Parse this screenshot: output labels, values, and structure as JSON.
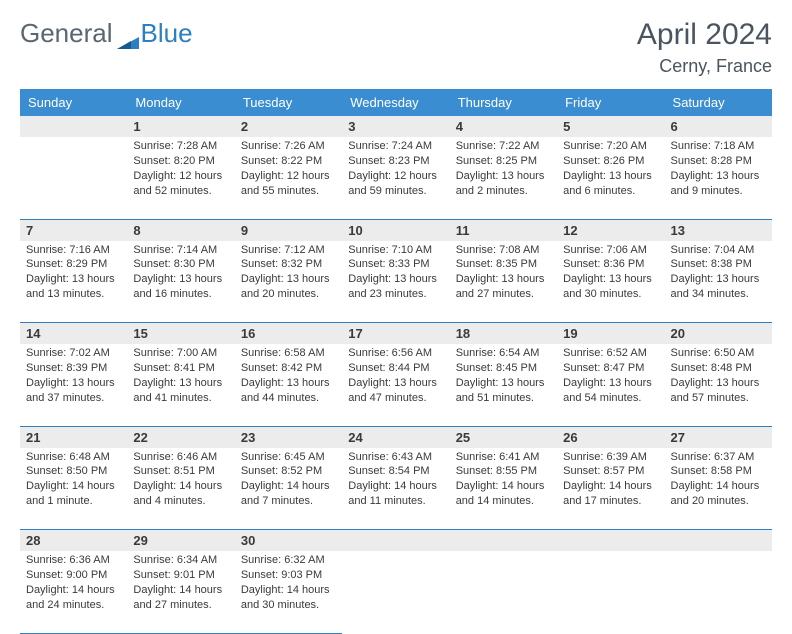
{
  "logo": {
    "text1": "General",
    "text2": "Blue"
  },
  "title": "April 2024",
  "location": "Cerny, France",
  "colors": {
    "header_bg": "#3a8dd0",
    "border": "#2d7fc1",
    "daynum_bg": "#ececec",
    "text": "#3a3a3a",
    "title_text": "#4a5560"
  },
  "day_headers": [
    "Sunday",
    "Monday",
    "Tuesday",
    "Wednesday",
    "Thursday",
    "Friday",
    "Saturday"
  ],
  "weeks": [
    {
      "nums": [
        "",
        "1",
        "2",
        "3",
        "4",
        "5",
        "6"
      ],
      "cells": [
        null,
        {
          "sunrise": "Sunrise: 7:28 AM",
          "sunset": "Sunset: 8:20 PM",
          "daylight": "Daylight: 12 hours and 52 minutes."
        },
        {
          "sunrise": "Sunrise: 7:26 AM",
          "sunset": "Sunset: 8:22 PM",
          "daylight": "Daylight: 12 hours and 55 minutes."
        },
        {
          "sunrise": "Sunrise: 7:24 AM",
          "sunset": "Sunset: 8:23 PM",
          "daylight": "Daylight: 12 hours and 59 minutes."
        },
        {
          "sunrise": "Sunrise: 7:22 AM",
          "sunset": "Sunset: 8:25 PM",
          "daylight": "Daylight: 13 hours and 2 minutes."
        },
        {
          "sunrise": "Sunrise: 7:20 AM",
          "sunset": "Sunset: 8:26 PM",
          "daylight": "Daylight: 13 hours and 6 minutes."
        },
        {
          "sunrise": "Sunrise: 7:18 AM",
          "sunset": "Sunset: 8:28 PM",
          "daylight": "Daylight: 13 hours and 9 minutes."
        }
      ]
    },
    {
      "nums": [
        "7",
        "8",
        "9",
        "10",
        "11",
        "12",
        "13"
      ],
      "cells": [
        {
          "sunrise": "Sunrise: 7:16 AM",
          "sunset": "Sunset: 8:29 PM",
          "daylight": "Daylight: 13 hours and 13 minutes."
        },
        {
          "sunrise": "Sunrise: 7:14 AM",
          "sunset": "Sunset: 8:30 PM",
          "daylight": "Daylight: 13 hours and 16 minutes."
        },
        {
          "sunrise": "Sunrise: 7:12 AM",
          "sunset": "Sunset: 8:32 PM",
          "daylight": "Daylight: 13 hours and 20 minutes."
        },
        {
          "sunrise": "Sunrise: 7:10 AM",
          "sunset": "Sunset: 8:33 PM",
          "daylight": "Daylight: 13 hours and 23 minutes."
        },
        {
          "sunrise": "Sunrise: 7:08 AM",
          "sunset": "Sunset: 8:35 PM",
          "daylight": "Daylight: 13 hours and 27 minutes."
        },
        {
          "sunrise": "Sunrise: 7:06 AM",
          "sunset": "Sunset: 8:36 PM",
          "daylight": "Daylight: 13 hours and 30 minutes."
        },
        {
          "sunrise": "Sunrise: 7:04 AM",
          "sunset": "Sunset: 8:38 PM",
          "daylight": "Daylight: 13 hours and 34 minutes."
        }
      ]
    },
    {
      "nums": [
        "14",
        "15",
        "16",
        "17",
        "18",
        "19",
        "20"
      ],
      "cells": [
        {
          "sunrise": "Sunrise: 7:02 AM",
          "sunset": "Sunset: 8:39 PM",
          "daylight": "Daylight: 13 hours and 37 minutes."
        },
        {
          "sunrise": "Sunrise: 7:00 AM",
          "sunset": "Sunset: 8:41 PM",
          "daylight": "Daylight: 13 hours and 41 minutes."
        },
        {
          "sunrise": "Sunrise: 6:58 AM",
          "sunset": "Sunset: 8:42 PM",
          "daylight": "Daylight: 13 hours and 44 minutes."
        },
        {
          "sunrise": "Sunrise: 6:56 AM",
          "sunset": "Sunset: 8:44 PM",
          "daylight": "Daylight: 13 hours and 47 minutes."
        },
        {
          "sunrise": "Sunrise: 6:54 AM",
          "sunset": "Sunset: 8:45 PM",
          "daylight": "Daylight: 13 hours and 51 minutes."
        },
        {
          "sunrise": "Sunrise: 6:52 AM",
          "sunset": "Sunset: 8:47 PM",
          "daylight": "Daylight: 13 hours and 54 minutes."
        },
        {
          "sunrise": "Sunrise: 6:50 AM",
          "sunset": "Sunset: 8:48 PM",
          "daylight": "Daylight: 13 hours and 57 minutes."
        }
      ]
    },
    {
      "nums": [
        "21",
        "22",
        "23",
        "24",
        "25",
        "26",
        "27"
      ],
      "cells": [
        {
          "sunrise": "Sunrise: 6:48 AM",
          "sunset": "Sunset: 8:50 PM",
          "daylight": "Daylight: 14 hours and 1 minute."
        },
        {
          "sunrise": "Sunrise: 6:46 AM",
          "sunset": "Sunset: 8:51 PM",
          "daylight": "Daylight: 14 hours and 4 minutes."
        },
        {
          "sunrise": "Sunrise: 6:45 AM",
          "sunset": "Sunset: 8:52 PM",
          "daylight": "Daylight: 14 hours and 7 minutes."
        },
        {
          "sunrise": "Sunrise: 6:43 AM",
          "sunset": "Sunset: 8:54 PM",
          "daylight": "Daylight: 14 hours and 11 minutes."
        },
        {
          "sunrise": "Sunrise: 6:41 AM",
          "sunset": "Sunset: 8:55 PM",
          "daylight": "Daylight: 14 hours and 14 minutes."
        },
        {
          "sunrise": "Sunrise: 6:39 AM",
          "sunset": "Sunset: 8:57 PM",
          "daylight": "Daylight: 14 hours and 17 minutes."
        },
        {
          "sunrise": "Sunrise: 6:37 AM",
          "sunset": "Sunset: 8:58 PM",
          "daylight": "Daylight: 14 hours and 20 minutes."
        }
      ]
    },
    {
      "nums": [
        "28",
        "29",
        "30",
        "",
        "",
        "",
        ""
      ],
      "cells": [
        {
          "sunrise": "Sunrise: 6:36 AM",
          "sunset": "Sunset: 9:00 PM",
          "daylight": "Daylight: 14 hours and 24 minutes."
        },
        {
          "sunrise": "Sunrise: 6:34 AM",
          "sunset": "Sunset: 9:01 PM",
          "daylight": "Daylight: 14 hours and 27 minutes."
        },
        {
          "sunrise": "Sunrise: 6:32 AM",
          "sunset": "Sunset: 9:03 PM",
          "daylight": "Daylight: 14 hours and 30 minutes."
        },
        null,
        null,
        null,
        null
      ]
    }
  ]
}
